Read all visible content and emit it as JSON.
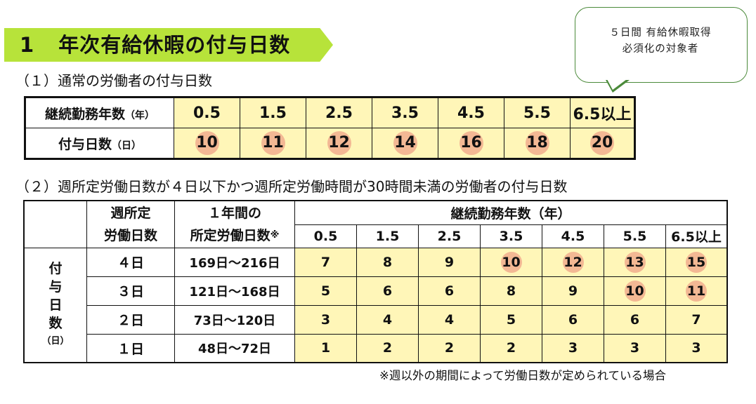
{
  "section": {
    "number": "1",
    "title": "年次有給休暇の付与日数"
  },
  "callout": {
    "line1": "５日間 有給休暇取得",
    "line2": "必須化の対象者"
  },
  "table1": {
    "heading": "（１）通常の労働者の付与日数",
    "row1_label": "継続勤務年数",
    "row1_unit": "（年）",
    "row2_label": "付与日数",
    "row2_unit": "（日）",
    "years": [
      "0.5",
      "1.5",
      "2.5",
      "3.5",
      "4.5",
      "5.5",
      "6.5以上"
    ],
    "days": [
      "10",
      "11",
      "12",
      "14",
      "16",
      "18",
      "20"
    ],
    "highlighted": [
      true,
      true,
      true,
      true,
      true,
      true,
      true
    ]
  },
  "table2": {
    "heading": "（２）週所定労働日数が４日以下かつ週所定労働時間が30時間未満の労働者の付与日数",
    "col_weekly_line1": "週所定",
    "col_weekly_line2": "労働日数",
    "col_annual_line1": "１年間の",
    "col_annual_line2": "所定労働日数",
    "col_annual_mark": "※",
    "col_years": "継続勤務年数（年）",
    "years": [
      "0.5",
      "1.5",
      "2.5",
      "3.5",
      "4.5",
      "5.5",
      "6.5以上"
    ],
    "side_chars": [
      "付",
      "与",
      "日",
      "数"
    ],
    "side_unit": "（日）",
    "rows": [
      {
        "weekly": "４日",
        "annual": "169日～216日",
        "days": [
          "7",
          "8",
          "9",
          "10",
          "12",
          "13",
          "15"
        ],
        "highlight": [
          false,
          false,
          false,
          true,
          true,
          true,
          true
        ]
      },
      {
        "weekly": "３日",
        "annual": "121日～168日",
        "days": [
          "5",
          "6",
          "6",
          "8",
          "9",
          "10",
          "11"
        ],
        "highlight": [
          false,
          false,
          false,
          false,
          false,
          true,
          true
        ]
      },
      {
        "weekly": "２日",
        "annual": "73日～120日",
        "days": [
          "3",
          "4",
          "4",
          "5",
          "6",
          "6",
          "7"
        ],
        "highlight": [
          false,
          false,
          false,
          false,
          false,
          false,
          false
        ]
      },
      {
        "weekly": "１日",
        "annual": "48日～72日",
        "days": [
          "1",
          "2",
          "2",
          "2",
          "3",
          "3",
          "3"
        ],
        "highlight": [
          false,
          false,
          false,
          false,
          false,
          false,
          false
        ]
      }
    ]
  },
  "footnote": "※週以外の期間によって労働日数が定められている場合",
  "colors": {
    "banner": "#b7e33a",
    "cell_fill": "#fff6b8",
    "highlight_circle": "#f3b894",
    "callout_border": "#4b8a3a"
  }
}
